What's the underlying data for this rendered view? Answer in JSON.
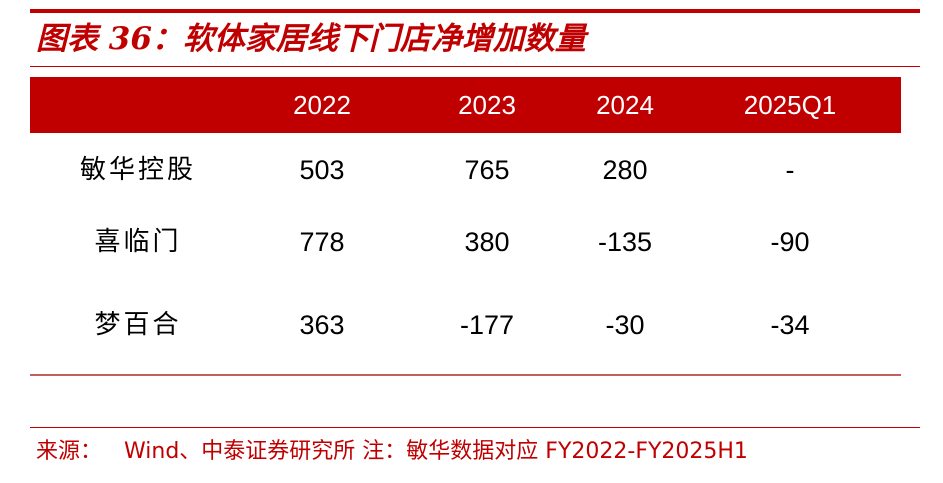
{
  "title": "图表 36：软体家居线下门店净增加数量",
  "source": {
    "label": "来源：",
    "text": "Wind、中泰证券研究所 注：敏华数据对应 FY2022-FY2025H1"
  },
  "chart_data": {
    "type": "table",
    "columns": [
      "2022",
      "2023",
      "2024",
      "2025Q1"
    ],
    "rows": [
      {
        "name": "敏华控股",
        "values": [
          "503",
          "765",
          "280",
          "-"
        ]
      },
      {
        "name": "喜临门",
        "values": [
          "778",
          "380",
          "-135",
          "-90"
        ]
      },
      {
        "name": "梦百合",
        "values": [
          "363",
          "-177",
          "-30",
          "-34"
        ]
      }
    ]
  },
  "colors": {
    "accent": "#c00000",
    "header_text": "#ffffff",
    "body_text": "#000000"
  }
}
